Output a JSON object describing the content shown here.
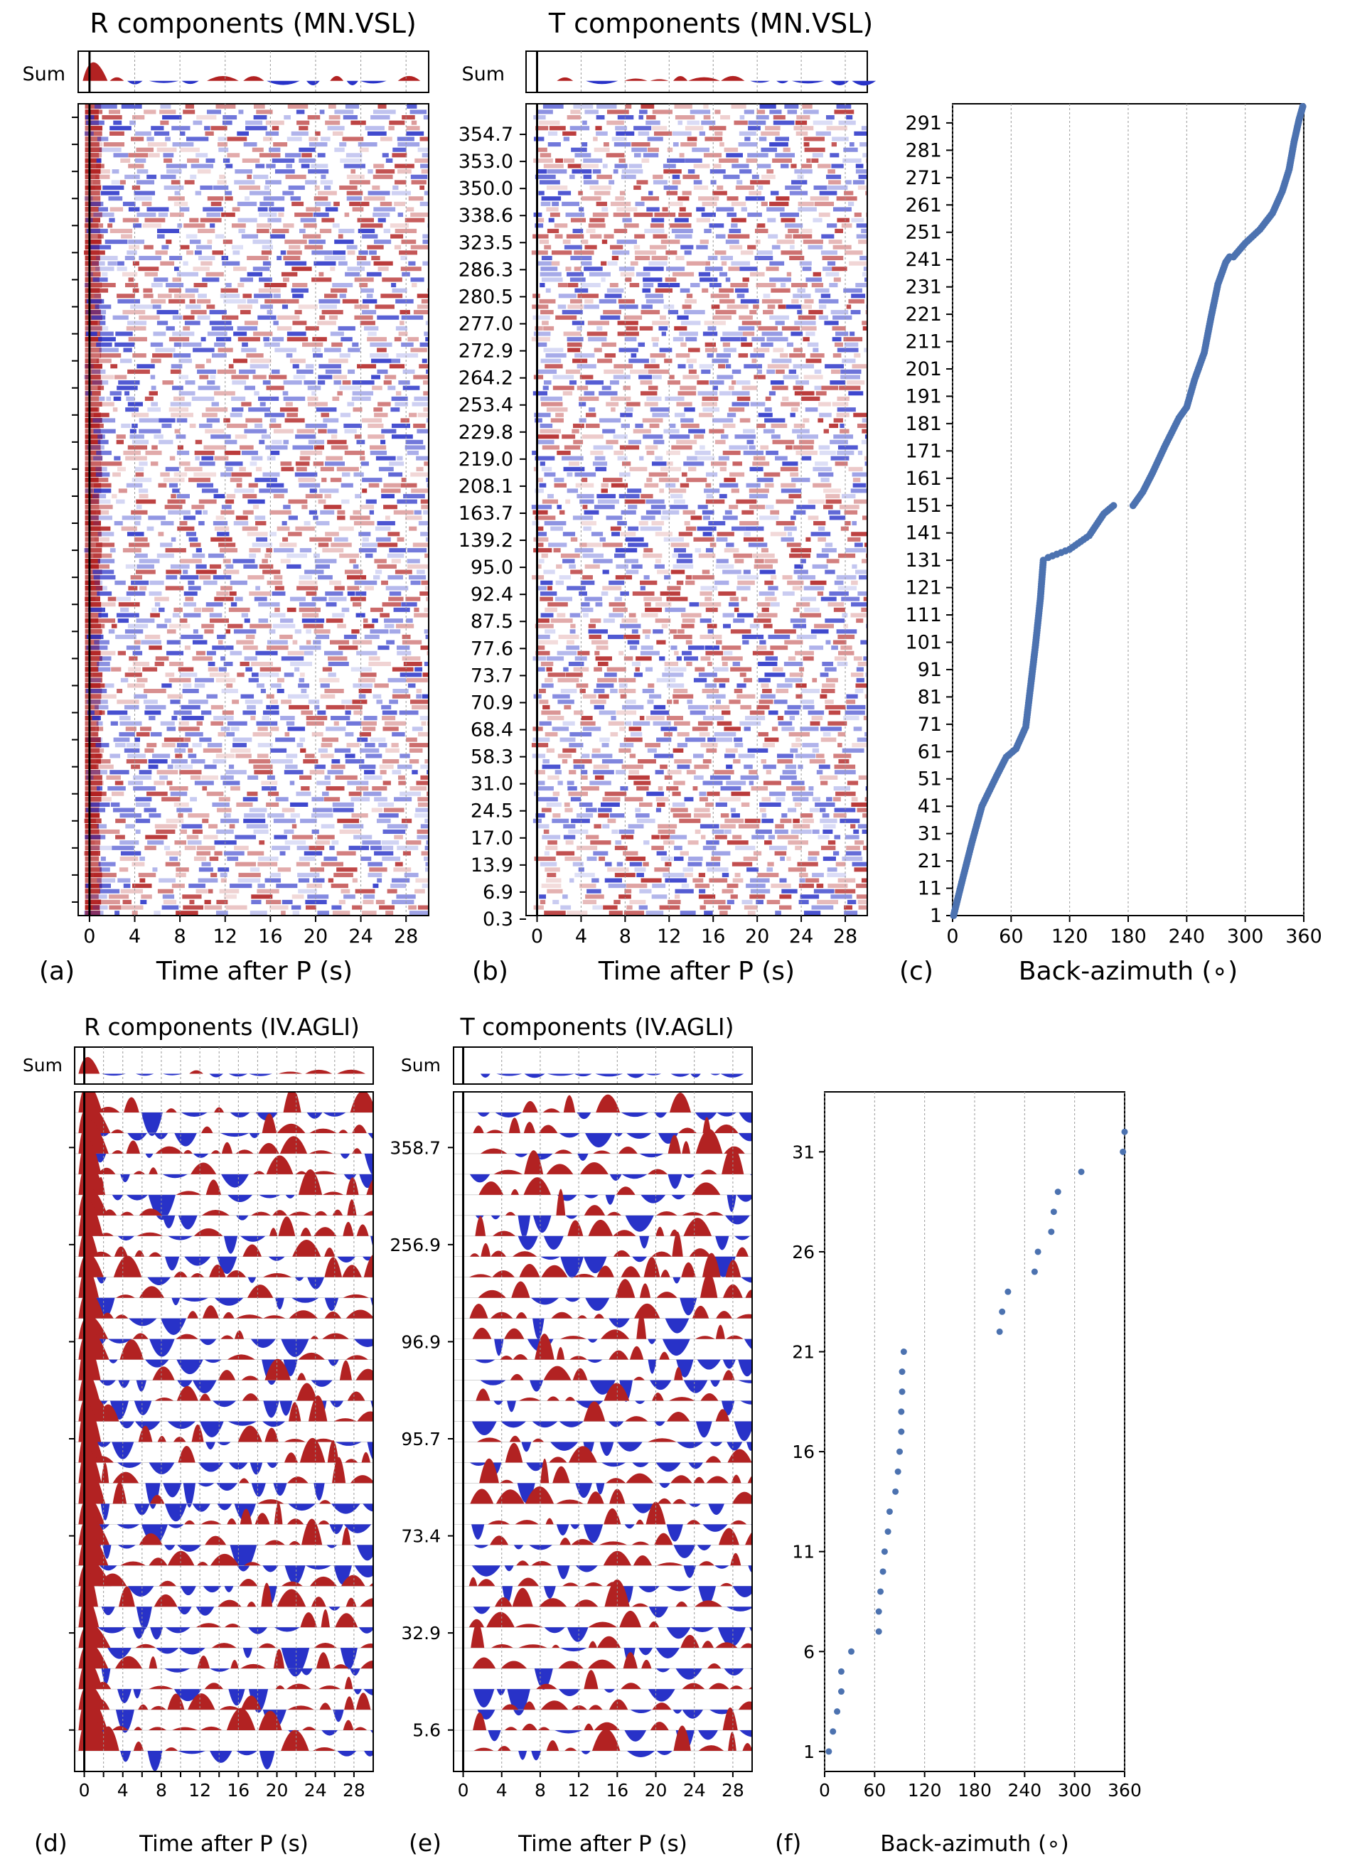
{
  "chart_data": [
    {
      "panel": "a",
      "type": "heatmap",
      "title": "R components (MN.VSL)",
      "xlabel": "Time after P (s)",
      "xlim": [
        -1,
        30
      ],
      "xticks": [
        "0",
        "4",
        "8",
        "12",
        "16",
        "20",
        "24",
        "28"
      ],
      "sum_label": "Sum",
      "colors": {
        "positive": "#b22222",
        "negative": "#2832c8"
      }
    },
    {
      "panel": "b",
      "type": "heatmap",
      "title": "T components (MN.VSL)",
      "xlabel": "Time after P (s)",
      "xlim": [
        -1,
        30
      ],
      "xticks": [
        "0",
        "4",
        "8",
        "12",
        "16",
        "20",
        "24",
        "28"
      ],
      "sum_label": "Sum",
      "yticks": [
        "354.7",
        "353.0",
        "350.0",
        "338.6",
        "323.5",
        "286.3",
        "280.5",
        "277.0",
        "272.9",
        "264.2",
        "253.4",
        "229.8",
        "219.0",
        "208.1",
        "163.7",
        "139.2",
        "95.0",
        "92.4",
        "87.5",
        "77.6",
        "73.7",
        "70.9",
        "68.4",
        "58.3",
        "31.0",
        "24.5",
        "17.0",
        "13.9",
        "6.9",
        "0.3"
      ],
      "colors": {
        "positive": "#b22222",
        "negative": "#2832c8"
      }
    },
    {
      "panel": "c",
      "type": "scatter",
      "xlabel": "Back-azimuth (∘)",
      "xlim": [
        0,
        360
      ],
      "ylim": [
        1,
        298
      ],
      "xticks": [
        "0",
        "60",
        "120",
        "180",
        "240",
        "300",
        "360"
      ],
      "yticks": [
        "1",
        "11",
        "21",
        "31",
        "41",
        "51",
        "61",
        "71",
        "81",
        "91",
        "101",
        "111",
        "121",
        "131",
        "141",
        "151",
        "161",
        "171",
        "181",
        "191",
        "201",
        "211",
        "221",
        "231",
        "241",
        "251",
        "261",
        "271",
        "281",
        "291"
      ],
      "color": "#4c72b0",
      "segments": [
        [
          [
            1,
            1
          ],
          [
            10,
            14
          ],
          [
            20,
            28
          ],
          [
            30,
            41
          ],
          [
            45,
            52
          ],
          [
            55,
            59
          ],
          [
            65,
            62
          ],
          [
            75,
            70
          ],
          [
            80,
            85
          ],
          [
            85,
            100
          ],
          [
            90,
            117
          ],
          [
            93,
            131
          ]
        ],
        [
          [
            98,
            132
          ],
          [
            120,
            135
          ],
          [
            140,
            140
          ],
          [
            155,
            148
          ],
          [
            165,
            151
          ]
        ],
        [
          [
            185,
            151
          ],
          [
            195,
            156
          ],
          [
            205,
            163
          ],
          [
            218,
            173
          ],
          [
            232,
            183
          ],
          [
            240,
            187
          ],
          [
            248,
            197
          ],
          [
            258,
            207
          ],
          [
            265,
            220
          ],
          [
            272,
            232
          ],
          [
            280,
            240
          ],
          [
            284,
            242
          ]
        ],
        [
          [
            288,
            242
          ],
          [
            300,
            247
          ],
          [
            315,
            252
          ],
          [
            328,
            258
          ],
          [
            338,
            266
          ],
          [
            345,
            274
          ],
          [
            350,
            284
          ],
          [
            355,
            292
          ],
          [
            359,
            297
          ]
        ]
      ]
    },
    {
      "panel": "d",
      "type": "area",
      "title": "R components (IV.AGLI)",
      "xlabel": "Time after P (s)",
      "xlim": [
        -1,
        30
      ],
      "xticks": [
        "0",
        "2",
        "4",
        "6",
        "8",
        "10",
        "12",
        "14",
        "16",
        "18",
        "20",
        "22",
        "24",
        "26",
        "28"
      ],
      "tick_labels_shown": [
        "0",
        "4",
        "8",
        "12",
        "16",
        "20",
        "24",
        "28"
      ],
      "sum_label": "Sum",
      "colors": {
        "positive": "#b22222",
        "negative": "#2832c8"
      }
    },
    {
      "panel": "e",
      "type": "area",
      "title": "T components (IV.AGLI)",
      "xlabel": "Time after P (s)",
      "xlim": [
        -1,
        30
      ],
      "xticks": [
        "0",
        "4",
        "8",
        "12",
        "16",
        "20",
        "24",
        "28"
      ],
      "sum_label": "Sum",
      "yticks": [
        "358.7",
        "256.9",
        "96.9",
        "95.7",
        "73.4",
        "32.9",
        "5.6"
      ],
      "colors": {
        "positive": "#b22222",
        "negative": "#2832c8"
      }
    },
    {
      "panel": "f",
      "type": "scatter",
      "xlabel": "Back-azimuth (∘)",
      "xlim": [
        0,
        360
      ],
      "ylim": [
        0,
        34
      ],
      "xticks": [
        "0",
        "60",
        "120",
        "180",
        "240",
        "300",
        "360"
      ],
      "yticks": [
        "1",
        "6",
        "11",
        "16",
        "21",
        "26",
        "31"
      ],
      "color": "#4c72b0",
      "x": [
        5,
        10,
        15,
        20,
        20,
        32,
        65,
        65,
        67,
        70,
        72,
        76,
        78,
        85,
        88,
        90,
        92,
        92,
        93,
        93,
        95,
        210,
        213,
        220,
        252,
        256,
        272,
        275,
        280,
        308,
        358,
        360
      ],
      "y": [
        1,
        2,
        3,
        4,
        5,
        6,
        7,
        8,
        9,
        10,
        11,
        12,
        13,
        14,
        15,
        16,
        17,
        18,
        19,
        20,
        21,
        22,
        23,
        24,
        25,
        26,
        27,
        28,
        29,
        30,
        31,
        32
      ]
    }
  ],
  "panel_labels": [
    "(a)",
    "(b)",
    "(c)",
    "(d)",
    "(e)",
    "(f)"
  ]
}
